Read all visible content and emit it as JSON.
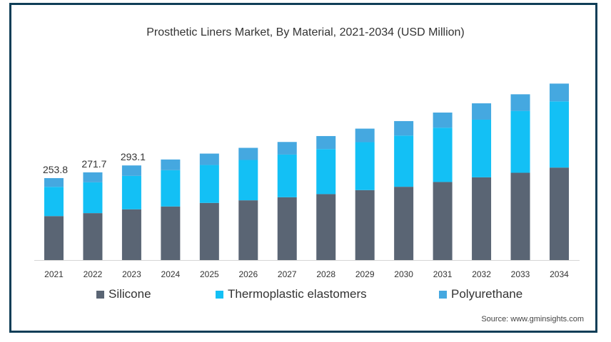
{
  "chart_data": {
    "type": "bar",
    "stacked": true,
    "title": "Prosthetic Liners Market, By Material, 2021-2034 (USD Million)",
    "xlabel": "",
    "ylabel": "",
    "ylim": [
      0,
      560
    ],
    "grid": false,
    "legend_position": "bottom",
    "categories": [
      "2021",
      "2022",
      "2023",
      "2024",
      "2025",
      "2026",
      "2027",
      "2028",
      "2029",
      "2030",
      "2031",
      "2032",
      "2033",
      "2034"
    ],
    "series": [
      {
        "name": "Silicone",
        "color": "#5a6574",
        "values": [
          136.2,
          145.4,
          157.2,
          166.0,
          177.0,
          185.1,
          194.6,
          204.3,
          216.7,
          227.0,
          241.8,
          256.3,
          270.4,
          286.5
        ]
      },
      {
        "name": "Thermoplastic elastomers",
        "color": "#13c0f5",
        "values": [
          90.5,
          95.4,
          103.6,
          112.4,
          117.5,
          125.0,
          132.2,
          139.5,
          148.5,
          158.7,
          168.2,
          178.5,
          191.7,
          205.0
        ]
      },
      {
        "name": "Polyurethane",
        "color": "#45a8e0",
        "values": [
          27.1,
          30.9,
          32.3,
          33.1,
          35.3,
          37.5,
          39.0,
          40.3,
          41.9,
          44.8,
          46.9,
          50.7,
          51.4,
          55.1
        ]
      }
    ],
    "data_labels": {
      "2021": "253.8",
      "2022": "271.7",
      "2023": "293.1"
    },
    "source": "Source: www.gminsights.com"
  }
}
